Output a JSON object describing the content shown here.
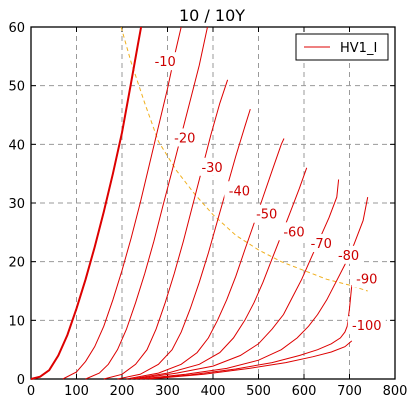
{
  "chart_data": {
    "type": "line",
    "title": "10 / 10Y",
    "xlabel": "",
    "ylabel": "",
    "xlim": [
      0,
      800
    ],
    "ylim": [
      0,
      60
    ],
    "x_ticks": [
      0,
      100,
      200,
      300,
      400,
      500,
      600,
      700,
      800
    ],
    "y_ticks": [
      0,
      10,
      20,
      30,
      40,
      50,
      60
    ],
    "grid": true,
    "legend": {
      "placement": "top-right",
      "entries": [
        "HV1_I"
      ]
    },
    "colors": {
      "curves": "#dd0000",
      "dissipation": "#f0b020",
      "label_bg": "#ffffff"
    },
    "series": [
      {
        "label": "",
        "bold": true,
        "points": [
          [
            0,
            0
          ],
          [
            20,
            0.4
          ],
          [
            40,
            1.5
          ],
          [
            60,
            4
          ],
          [
            80,
            7.5
          ],
          [
            100,
            12
          ],
          [
            120,
            17
          ],
          [
            140,
            22.5
          ],
          [
            160,
            28.5
          ],
          [
            180,
            35
          ],
          [
            200,
            42
          ],
          [
            220,
            50.5
          ],
          [
            235,
            57
          ],
          [
            242,
            60
          ]
        ]
      },
      {
        "label": "-10",
        "points": [
          [
            70,
            0
          ],
          [
            100,
            1.2
          ],
          [
            120,
            3
          ],
          [
            140,
            5.5
          ],
          [
            160,
            9
          ],
          [
            180,
            13.5
          ],
          [
            200,
            18.5
          ],
          [
            220,
            24
          ],
          [
            240,
            30
          ],
          [
            260,
            36.5
          ],
          [
            280,
            43
          ],
          [
            300,
            49.5
          ],
          [
            318,
            56
          ],
          [
            330,
            60
          ]
        ]
      },
      {
        "label": "-20",
        "points": [
          [
            120,
            0
          ],
          [
            150,
            1
          ],
          [
            170,
            2.5
          ],
          [
            190,
            5
          ],
          [
            210,
            8.5
          ],
          [
            230,
            13
          ],
          [
            250,
            18
          ],
          [
            270,
            23.5
          ],
          [
            290,
            29.5
          ],
          [
            310,
            35.5
          ],
          [
            330,
            41.5
          ],
          [
            350,
            47.5
          ],
          [
            370,
            53.5
          ],
          [
            385,
            59
          ],
          [
            388,
            60
          ]
        ]
      },
      {
        "label": "-30",
        "points": [
          [
            160,
            0
          ],
          [
            200,
            0.8
          ],
          [
            230,
            2.5
          ],
          [
            255,
            5
          ],
          [
            275,
            8.5
          ],
          [
            295,
            13
          ],
          [
            315,
            18
          ],
          [
            335,
            23.5
          ],
          [
            355,
            29.5
          ],
          [
            375,
            35.5
          ],
          [
            395,
            41.5
          ],
          [
            415,
            47
          ],
          [
            432,
            51
          ]
        ]
      },
      {
        "label": "-40",
        "points": [
          [
            190,
            0
          ],
          [
            240,
            0.8
          ],
          [
            280,
            2.5
          ],
          [
            310,
            5
          ],
          [
            330,
            8
          ],
          [
            350,
            12
          ],
          [
            370,
            16.5
          ],
          [
            390,
            21.5
          ],
          [
            410,
            27
          ],
          [
            430,
            32.5
          ],
          [
            450,
            38
          ],
          [
            470,
            43
          ],
          [
            482,
            46
          ]
        ]
      },
      {
        "label": "-50",
        "points": [
          [
            210,
            0
          ],
          [
            280,
            1
          ],
          [
            330,
            2.5
          ],
          [
            365,
            4.5
          ],
          [
            390,
            7
          ],
          [
            410,
            10
          ],
          [
            430,
            13.5
          ],
          [
            450,
            17.5
          ],
          [
            470,
            22
          ],
          [
            490,
            26.5
          ],
          [
            510,
            31
          ],
          [
            530,
            35.5
          ],
          [
            550,
            40
          ],
          [
            556,
            41
          ]
        ]
      },
      {
        "label": "-60",
        "points": [
          [
            220,
            0
          ],
          [
            300,
            1
          ],
          [
            370,
            2.5
          ],
          [
            415,
            4.5
          ],
          [
            445,
            7
          ],
          [
            470,
            10
          ],
          [
            490,
            13
          ],
          [
            510,
            16.5
          ],
          [
            530,
            20.5
          ],
          [
            550,
            24.5
          ],
          [
            570,
            28.5
          ],
          [
            590,
            32.5
          ],
          [
            606,
            36
          ]
        ]
      },
      {
        "label": "-70",
        "points": [
          [
            230,
            0
          ],
          [
            320,
            1
          ],
          [
            400,
            2.2
          ],
          [
            460,
            4
          ],
          [
            500,
            6
          ],
          [
            530,
            8.5
          ],
          [
            555,
            11
          ],
          [
            575,
            14
          ],
          [
            595,
            17
          ],
          [
            615,
            20.5
          ],
          [
            635,
            24
          ],
          [
            655,
            27.5
          ],
          [
            672,
            31
          ],
          [
            676,
            34
          ]
        ]
      },
      {
        "label": "-80",
        "points": [
          [
            240,
            0
          ],
          [
            340,
            0.8
          ],
          [
            430,
            1.8
          ],
          [
            500,
            3.2
          ],
          [
            550,
            5
          ],
          [
            585,
            7
          ],
          [
            610,
            9
          ],
          [
            630,
            11
          ],
          [
            650,
            13.5
          ],
          [
            670,
            16.5
          ],
          [
            690,
            19.5
          ],
          [
            710,
            23
          ],
          [
            730,
            27
          ],
          [
            740,
            31
          ]
        ]
      },
      {
        "label": "-90",
        "points": [
          [
            250,
            0
          ],
          [
            350,
            0.7
          ],
          [
            450,
            1.7
          ],
          [
            530,
            2.8
          ],
          [
            590,
            4
          ],
          [
            630,
            5
          ],
          [
            660,
            6
          ],
          [
            680,
            7
          ],
          [
            690,
            8
          ],
          [
            695,
            9
          ],
          [
            700,
            12
          ],
          [
            705,
            16
          ]
        ]
      },
      {
        "label": "-100",
        "points": [
          [
            260,
            0
          ],
          [
            380,
            0.8
          ],
          [
            480,
            1.8
          ],
          [
            560,
            2.8
          ],
          [
            620,
            3.8
          ],
          [
            660,
            4.6
          ],
          [
            690,
            5.5
          ],
          [
            705,
            6.5
          ]
        ]
      }
    ],
    "dissipation_curve": {
      "points": [
        [
          198,
          60
        ],
        [
          220,
          54
        ],
        [
          250,
          47
        ],
        [
          280,
          40.5
        ],
        [
          320,
          35.5
        ],
        [
          360,
          31.5
        ],
        [
          400,
          28
        ],
        [
          450,
          24.5
        ],
        [
          500,
          22
        ],
        [
          550,
          20
        ],
        [
          600,
          18.5
        ],
        [
          650,
          17
        ],
        [
          700,
          16
        ],
        [
          740,
          15
        ]
      ]
    },
    "annotations": [
      {
        "text": "-10",
        "x": 295,
        "y": 54
      },
      {
        "text": "-20",
        "x": 338,
        "y": 41
      },
      {
        "text": "-30",
        "x": 398,
        "y": 36
      },
      {
        "text": "-40",
        "x": 458,
        "y": 32
      },
      {
        "text": "-50",
        "x": 518,
        "y": 28
      },
      {
        "text": "-60",
        "x": 578,
        "y": 25
      },
      {
        "text": "-70",
        "x": 638,
        "y": 23
      },
      {
        "text": "-80",
        "x": 698,
        "y": 21
      },
      {
        "text": "-90",
        "x": 738,
        "y": 17
      },
      {
        "text": "-100",
        "x": 738,
        "y": 9
      }
    ]
  }
}
